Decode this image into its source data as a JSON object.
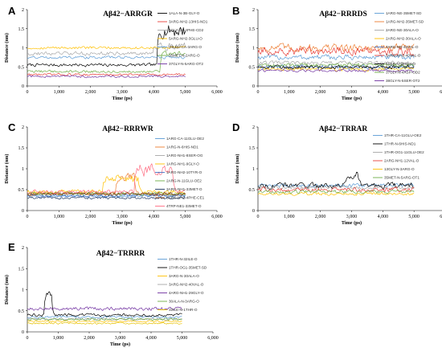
{
  "chart_data": [
    {
      "type": "line",
      "panel_label": "A",
      "title": "Aβ42−ARRGR",
      "xlabel": "Time (ps)",
      "ylabel": "Distance (nm)",
      "xlim": [
        0,
        6000
      ],
      "ylim": [
        0,
        2
      ],
      "x_ticks": [
        "0",
        "1,000",
        "2,000",
        "3,000",
        "4,000",
        "5,000",
        "6,000"
      ],
      "y_ticks": [
        "0",
        "0.5",
        "1",
        "1.5",
        "2"
      ],
      "series": [
        {
          "name": "1ALA-N-3B-GLY-O",
          "color": "#000000",
          "base": 0.55,
          "noise": 0.06,
          "segments": [
            [
              4100,
              5000,
              1.45,
              0.25
            ]
          ]
        },
        {
          "name": "3ARG-NH2-13HIS-ND1",
          "color": "#e8403a",
          "base": 0.3,
          "noise": 0.04,
          "segments": []
        },
        {
          "name": "4GLY-CA-4PHE-CD2",
          "color": "#a6a6a6",
          "base": 0.85,
          "noise": 0.07,
          "segments": [
            [
              4000,
              5000,
              1.05,
              0.15
            ]
          ]
        },
        {
          "name": "5ARG-NH2-3GLU-O",
          "color": "#ffc000",
          "base": 1.0,
          "noise": 0.05,
          "segments": []
        },
        {
          "name": "34LEU-CA-3ARG-O",
          "color": "#5b9bd5",
          "base": 0.75,
          "noise": 0.05,
          "segments": []
        },
        {
          "name": "35MET-N-2ARG-O",
          "color": "#70ad47",
          "base": 0.38,
          "noise": 0.05,
          "segments": [
            [
              4200,
              5000,
              0.85,
              0.1
            ]
          ]
        },
        {
          "name": "37GLY-N-5ARG-OT2",
          "color": "#7030a0",
          "base": 0.25,
          "noise": 0.04,
          "segments": []
        }
      ]
    },
    {
      "type": "line",
      "panel_label": "B",
      "title": "Aβ42−RRRDS",
      "xlabel": "Time (ps)",
      "ylabel": "Distance (nm)",
      "xlim": [
        0,
        6000
      ],
      "ylim": [
        0,
        2
      ],
      "x_ticks": [
        "0",
        "1,000",
        "2,000",
        "3,000",
        "4,000",
        "5,000",
        "6,000"
      ],
      "y_ticks": [
        "0",
        "0.5",
        "1",
        "1.5",
        "2"
      ],
      "series": [
        {
          "name": "1ARG-NE-35MET-SD",
          "color": "#5b9bd5",
          "base": 0.75,
          "noise": 0.1,
          "segments": []
        },
        {
          "name": "1ARG-NH2-35MET-SD",
          "color": "#ed7d31",
          "base": 1.0,
          "noise": 0.15,
          "segments": []
        },
        {
          "name": "2ARG-NE-30ALA-O",
          "color": "#a6a6a6",
          "base": 0.6,
          "noise": 0.08,
          "segments": []
        },
        {
          "name": "2ARG-NH2-30ALA-O",
          "color": "#ffc000",
          "base": 0.45,
          "noise": 0.07,
          "segments": []
        },
        {
          "name": "3ARG-NE-40VAL-O",
          "color": "#4472c4",
          "base": 0.5,
          "noise": 0.08,
          "segments": []
        },
        {
          "name": "3ARG-NH2-40VAL-O",
          "color": "#e8403a",
          "base": 0.9,
          "noise": 0.15,
          "segments": []
        },
        {
          "name": "5SER-N-38GLY-O",
          "color": "#000000",
          "base": 0.5,
          "noise": 0.07,
          "segments": []
        },
        {
          "name": "37GLY-N-4ASP-OD2",
          "color": "#70ad47",
          "base": 0.55,
          "noise": 0.07,
          "segments": []
        },
        {
          "name": "38GLY-N-5SER-OT2",
          "color": "#7030a0",
          "base": 0.4,
          "noise": 0.05,
          "segments": []
        }
      ]
    },
    {
      "type": "line",
      "panel_label": "C",
      "title": "Aβ42−RRRWR",
      "xlabel": "Time (ps)",
      "ylabel": "Distance (nm)",
      "xlim": [
        0,
        6000
      ],
      "ylim": [
        0,
        2
      ],
      "x_ticks": [
        "0",
        "1,000",
        "2,000",
        "3,000",
        "4,000",
        "5,000",
        "6,000"
      ],
      "y_ticks": [
        "0",
        "0.5",
        "1",
        "1.5",
        "2"
      ],
      "series": [
        {
          "name": "1ARG-CA-11GLU-OE2",
          "color": "#5b9bd5",
          "base": 0.35,
          "noise": 0.05,
          "segments": []
        },
        {
          "name": "1ARG-N-6HIS-ND1",
          "color": "#ed7d31",
          "base": 0.4,
          "noise": 0.06,
          "segments": [
            [
              2800,
              3400,
              0.8,
              0.15
            ]
          ]
        },
        {
          "name": "1ARG-NH1-8SER-OG",
          "color": "#a6a6a6",
          "base": 0.4,
          "noise": 0.06,
          "segments": []
        },
        {
          "name": "1ARG-NH1-9GLY-O",
          "color": "#ffc000",
          "base": 0.45,
          "noise": 0.07,
          "segments": [
            [
              2400,
              3500,
              0.75,
              0.15
            ]
          ]
        },
        {
          "name": "1ARG-NH2-10TYR-O",
          "color": "#4472c4",
          "base": 0.35,
          "noise": 0.05,
          "segments": []
        },
        {
          "name": "2ARG-N-11GLU-OE2",
          "color": "#70ad47",
          "base": 0.4,
          "noise": 0.06,
          "segments": []
        },
        {
          "name": "3ARG-NH1-33MET-O",
          "color": "#1f3864",
          "base": 0.3,
          "noise": 0.04,
          "segments": []
        },
        {
          "name": "3ARG-NH2-4PHE-CE1",
          "color": "#843c0c",
          "base": 0.4,
          "noise": 0.06,
          "segments": []
        },
        {
          "name": "4TRP-NE1-33MET-O",
          "color": "#ff6b81",
          "base": 0.45,
          "noise": 0.06,
          "segments": [
            [
              3400,
              4600,
              0.95,
              0.25
            ]
          ]
        }
      ]
    },
    {
      "type": "line",
      "panel_label": "D",
      "title": "Aβ42−TRRAR",
      "xlabel": "Time (ps)",
      "ylabel": "Distance (nm)",
      "xlim": [
        0,
        6000
      ],
      "ylim": [
        0,
        2
      ],
      "x_ticks": [
        "0",
        "1,000",
        "2,000",
        "3,000",
        "4,000",
        "5,000",
        "6,000"
      ],
      "y_ticks": [
        "0",
        "0.5",
        "1",
        "1.5",
        "2"
      ],
      "series": [
        {
          "name": "1THR-CA-11GLU-OE2",
          "color": "#5b9bd5",
          "base": 0.6,
          "noise": 0.06,
          "segments": []
        },
        {
          "name": "1THR-N-6HIS-ND1",
          "color": "#000000",
          "base": 0.6,
          "noise": 0.1,
          "segments": [
            [
              2800,
              3200,
              0.85,
              0.15
            ]
          ]
        },
        {
          "name": "1THR-OG1-11GLU-OE2",
          "color": "#a6a6a6",
          "base": 0.55,
          "noise": 0.06,
          "segments": []
        },
        {
          "name": "2ARG-NH1-12VAL-O",
          "color": "#e8403a",
          "base": 0.5,
          "noise": 0.08,
          "segments": []
        },
        {
          "name": "13GLY-N-3ARG-O",
          "color": "#ffc000",
          "base": 0.4,
          "noise": 0.05,
          "segments": []
        },
        {
          "name": "35MET-N-5ARG-OT1",
          "color": "#70ad47",
          "base": 0.45,
          "noise": 0.06,
          "segments": []
        }
      ]
    },
    {
      "type": "line",
      "panel_label": "E",
      "title": "Aβ42−TRRRR",
      "xlabel": "Time (ps)",
      "ylabel": "Distance (nm)",
      "xlim": [
        0,
        6000
      ],
      "ylim": [
        0,
        2
      ],
      "x_ticks": [
        "0",
        "1,000",
        "2,000",
        "3,000",
        "4,000",
        "5,000",
        "6,000"
      ],
      "y_ticks": [
        "0",
        "0.5",
        "1",
        "1.5",
        "2"
      ],
      "series": [
        {
          "name": "1THR-N-32ILE-O",
          "color": "#5b9bd5",
          "base": 0.35,
          "noise": 0.04,
          "segments": []
        },
        {
          "name": "1THR-OG1-35MET-SD",
          "color": "#000000",
          "base": 0.4,
          "noise": 0.05,
          "segments": [
            [
              550,
              800,
              0.9,
              0.1
            ]
          ]
        },
        {
          "name": "3ARG-N-30ALA-O",
          "color": "#ffc000",
          "base": 0.25,
          "noise": 0.03,
          "segments": []
        },
        {
          "name": "3ARG-NH2-40VAL-O",
          "color": "#a6a6a6",
          "base": 0.3,
          "noise": 0.04,
          "segments": []
        },
        {
          "name": "4ARG-NH1-29GLY-O",
          "color": "#7030a0",
          "base": 0.55,
          "noise": 0.06,
          "segments": []
        },
        {
          "name": "30ALA-N-3ARG-O",
          "color": "#70ad47",
          "base": 0.3,
          "noise": 0.04,
          "segments": []
        },
        {
          "name": "32ILE-N-1THR-O",
          "color": "#e6c200",
          "base": 0.2,
          "noise": 0.03,
          "segments": []
        }
      ]
    }
  ]
}
